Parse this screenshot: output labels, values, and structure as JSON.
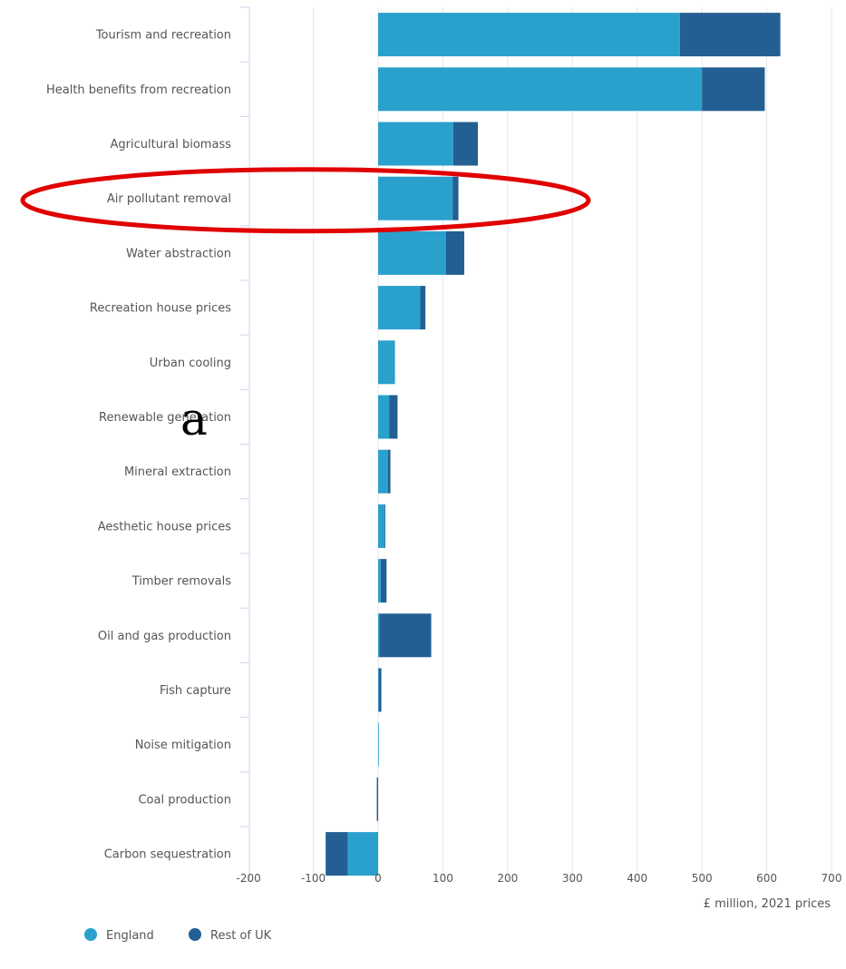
{
  "chart_data": {
    "type": "bar",
    "orientation": "horizontal",
    "stacked": true,
    "categories": [
      "Tourism and recreation",
      "Health benefits from recreation",
      "Agricultural biomass",
      "Air pollutant removal",
      "Water abstraction",
      "Recreation house prices",
      "Urban cooling",
      "Renewable generation",
      "Mineral extraction",
      "Aesthetic house prices",
      "Timber removals",
      "Oil and gas production",
      "Fish capture",
      "Noise mitigation",
      "Coal production",
      "Carbon sequestration"
    ],
    "series": [
      {
        "name": "England",
        "color": "#2aa0cd",
        "values": [
          466,
          500,
          116,
          115,
          105,
          65,
          26,
          17,
          15,
          10,
          4,
          2,
          1,
          1,
          0,
          -47
        ]
      },
      {
        "name": "Rest of UK",
        "color": "#235f92",
        "values": [
          155,
          97,
          38,
          9,
          28,
          8,
          0,
          13,
          4,
          1,
          9,
          80,
          4,
          0,
          -2,
          -34
        ]
      }
    ],
    "xlim": [
      -200,
      700
    ],
    "xticks": [
      -200,
      -100,
      0,
      100,
      200,
      300,
      400,
      500,
      600,
      700
    ],
    "xlabel": "£ million, 2021 prices",
    "ylabel": "",
    "title": "",
    "grid": true,
    "legend": "bottom-left",
    "highlight": {
      "category": "Air pollutant removal",
      "shape": "ellipse",
      "color": "#e00000"
    },
    "stray_text": "a"
  }
}
